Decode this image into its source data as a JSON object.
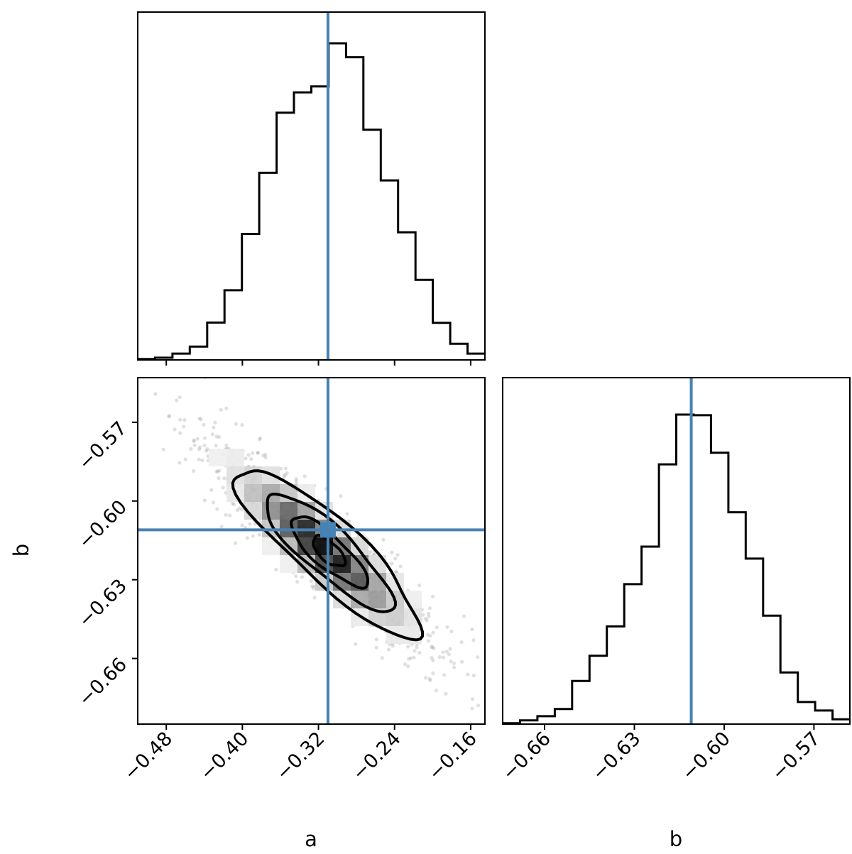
{
  "chart_data": [
    {
      "type": "histogram",
      "panel": "a",
      "x_range": [
        -0.51,
        -0.145
      ],
      "bins_edges_x": [
        -0.51,
        -0.4918,
        -0.4735,
        -0.4553,
        -0.437,
        -0.4188,
        -0.4005,
        -0.3823,
        -0.364,
        -0.3458,
        -0.3275,
        -0.3093,
        -0.291,
        -0.2728,
        -0.2545,
        -0.2363,
        -0.218,
        -0.1998,
        -0.1815,
        -0.1633,
        -0.145
      ],
      "counts_relative": [
        0.003,
        0.007,
        0.02,
        0.042,
        0.118,
        0.22,
        0.398,
        0.591,
        0.781,
        0.845,
        0.864,
        1.0,
        0.956,
        0.727,
        0.567,
        0.403,
        0.253,
        0.117,
        0.051,
        0.02
      ],
      "truth_x": -0.31,
      "truth_color": "#4682b4",
      "xticks": [
        "−0.48",
        "−0.40",
        "−0.32",
        "−0.24",
        "−0.16"
      ]
    },
    {
      "type": "contour_scatter",
      "panel": "a_vs_b",
      "x_range": [
        -0.51,
        -0.145
      ],
      "y_range": [
        -0.685,
        -0.553
      ],
      "truth": {
        "a": -0.31,
        "b": -0.611
      },
      "truth_color": "#4682b4",
      "xlabel": "a",
      "ylabel": "b",
      "xticks": [
        "−0.48",
        "−0.40",
        "−0.32",
        "−0.24",
        "−0.16"
      ],
      "yticks": [
        "−0.57",
        "−0.60",
        "−0.63",
        "−0.66"
      ],
      "contour_levels": 4,
      "density_peak": {
        "a": -0.3,
        "b": -0.611
      }
    },
    {
      "type": "histogram",
      "panel": "b",
      "x_range": [
        -0.674,
        -0.558
      ],
      "bins_edges_x": [
        -0.674,
        -0.6682,
        -0.6624,
        -0.6566,
        -0.6508,
        -0.645,
        -0.6392,
        -0.6334,
        -0.6276,
        -0.6218,
        -0.616,
        -0.6102,
        -0.6044,
        -0.5986,
        -0.5928,
        -0.587,
        -0.5812,
        -0.5754,
        -0.5696,
        -0.5638,
        -0.558
      ],
      "counts_relative": [
        0.003,
        0.012,
        0.025,
        0.048,
        0.137,
        0.217,
        0.31,
        0.444,
        0.563,
        0.824,
        0.982,
        0.98,
        0.861,
        0.672,
        0.525,
        0.344,
        0.164,
        0.07,
        0.043,
        0.015
      ],
      "truth_x": -0.611,
      "truth_color": "#4682b4",
      "xlabel": "b",
      "xticks": [
        "−0.66",
        "−0.63",
        "−0.60",
        "−0.57"
      ]
    }
  ]
}
